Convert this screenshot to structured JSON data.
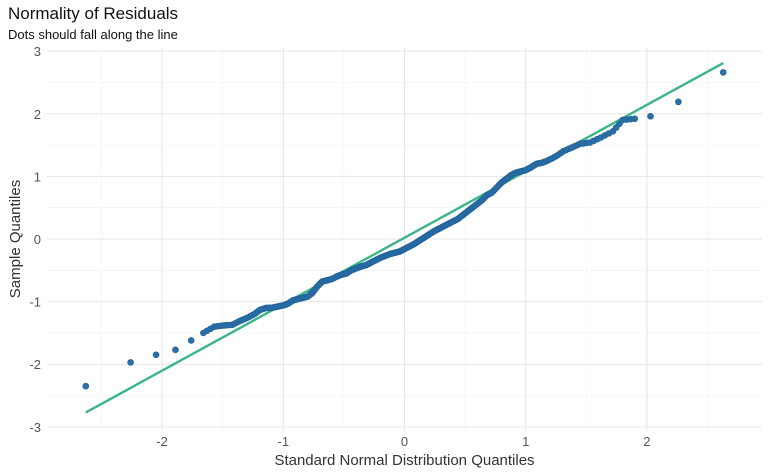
{
  "chart_data": {
    "type": "scatter",
    "title": "Normality of Residuals",
    "subtitle": "Dots should fall along the line",
    "xlabel": "Standard Normal Distribution Quantiles",
    "ylabel": "Sample Quantiles",
    "xlim": [
      -2.95,
      2.95
    ],
    "ylim": [
      -3.05,
      3.05
    ],
    "x_ticks": [
      -2,
      -1,
      0,
      1,
      2
    ],
    "y_ticks": [
      -3,
      -2,
      -1,
      0,
      1,
      2,
      3
    ],
    "grid": true,
    "point_color": "#2A6FA8",
    "line_color": "#3BB58A",
    "reference_line": {
      "x": [
        -2.63,
        2.63
      ],
      "y": [
        -2.77,
        2.81
      ]
    },
    "points": [
      [
        -2.63,
        -2.35
      ],
      [
        -2.26,
        -1.97
      ],
      [
        -2.05,
        -1.85
      ],
      [
        -1.89,
        -1.77
      ],
      [
        -1.76,
        -1.62
      ],
      [
        -1.66,
        -1.5
      ],
      [
        -1.57,
        -1.4
      ],
      [
        -1.49,
        -1.38
      ],
      [
        -1.42,
        -1.37
      ],
      [
        -1.36,
        -1.31
      ],
      [
        -1.3,
        -1.26
      ],
      [
        -1.24,
        -1.2
      ],
      [
        -1.19,
        -1.13
      ],
      [
        -1.14,
        -1.1
      ],
      [
        -1.1,
        -1.1
      ],
      [
        -1.05,
        -1.08
      ],
      [
        -1.0,
        -1.06
      ],
      [
        -0.96,
        -1.03
      ],
      [
        -0.92,
        -0.98
      ],
      [
        -0.88,
        -0.96
      ],
      [
        -0.84,
        -0.94
      ],
      [
        -0.8,
        -0.92
      ],
      [
        -0.76,
        -0.86
      ],
      [
        -0.72,
        -0.76
      ],
      [
        -0.68,
        -0.68
      ],
      [
        -0.64,
        -0.66
      ],
      [
        -0.6,
        -0.64
      ],
      [
        -0.56,
        -0.6
      ],
      [
        -0.52,
        -0.57
      ],
      [
        -0.48,
        -0.55
      ],
      [
        -0.44,
        -0.5
      ],
      [
        -0.4,
        -0.47
      ],
      [
        -0.36,
        -0.44
      ],
      [
        -0.32,
        -0.42
      ],
      [
        -0.28,
        -0.38
      ],
      [
        -0.24,
        -0.34
      ],
      [
        -0.2,
        -0.3
      ],
      [
        -0.16,
        -0.27
      ],
      [
        -0.12,
        -0.24
      ],
      [
        -0.08,
        -0.22
      ],
      [
        -0.04,
        -0.2
      ],
      [
        0.0,
        -0.16
      ],
      [
        0.04,
        -0.12
      ],
      [
        0.08,
        -0.08
      ],
      [
        0.12,
        -0.03
      ],
      [
        0.16,
        0.02
      ],
      [
        0.2,
        0.07
      ],
      [
        0.24,
        0.12
      ],
      [
        0.28,
        0.16
      ],
      [
        0.32,
        0.2
      ],
      [
        0.36,
        0.24
      ],
      [
        0.4,
        0.28
      ],
      [
        0.44,
        0.32
      ],
      [
        0.48,
        0.38
      ],
      [
        0.52,
        0.44
      ],
      [
        0.56,
        0.5
      ],
      [
        0.6,
        0.56
      ],
      [
        0.64,
        0.62
      ],
      [
        0.68,
        0.7
      ],
      [
        0.72,
        0.74
      ],
      [
        0.76,
        0.82
      ],
      [
        0.8,
        0.9
      ],
      [
        0.84,
        0.96
      ],
      [
        0.88,
        1.02
      ],
      [
        0.92,
        1.06
      ],
      [
        0.96,
        1.08
      ],
      [
        1.0,
        1.1
      ],
      [
        1.04,
        1.14
      ],
      [
        1.09,
        1.2
      ],
      [
        1.14,
        1.22
      ],
      [
        1.19,
        1.26
      ],
      [
        1.25,
        1.32
      ],
      [
        1.31,
        1.4
      ],
      [
        1.38,
        1.46
      ],
      [
        1.45,
        1.52
      ],
      [
        1.53,
        1.54
      ],
      [
        1.62,
        1.62
      ],
      [
        1.72,
        1.72
      ],
      [
        1.8,
        1.9
      ],
      [
        1.9,
        1.92
      ],
      [
        2.03,
        1.96
      ],
      [
        2.26,
        2.19
      ],
      [
        2.63,
        2.66
      ]
    ]
  }
}
